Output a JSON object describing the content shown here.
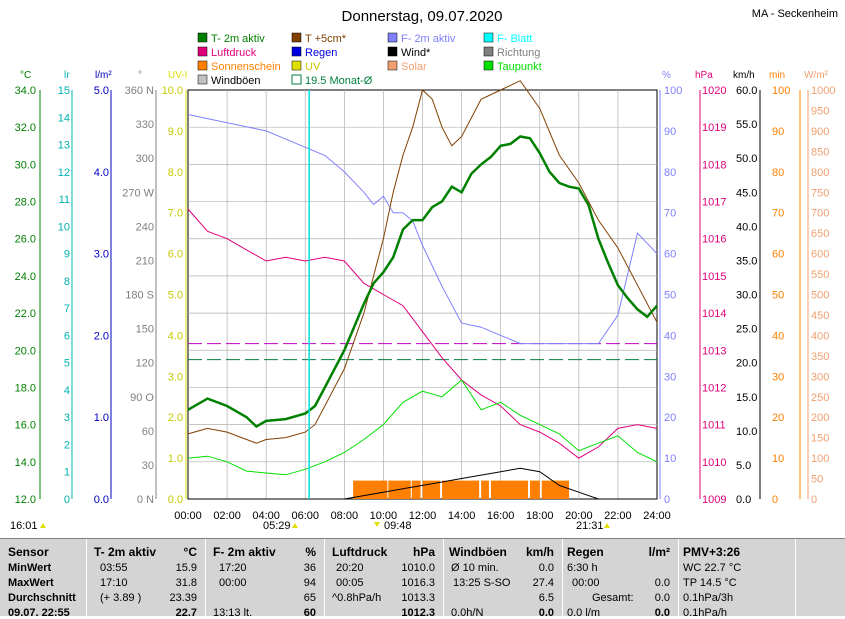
{
  "title": "Donnerstag, 09.07.2020",
  "station": "MA - Seckenheim",
  "legend": [
    {
      "label": "T- 2m aktiv",
      "color": "#008000",
      "kind": "box"
    },
    {
      "label": "T +5cm*",
      "color": "#804000",
      "kind": "box"
    },
    {
      "label": "F- 2m aktiv",
      "color": "#8080ff",
      "kind": "box"
    },
    {
      "label": "F- Blatt",
      "color": "#00ffff",
      "kind": "box"
    },
    {
      "label": "Luftdruck",
      "color": "#e0007a",
      "kind": "box"
    },
    {
      "label": "Regen",
      "color": "#0000e0",
      "kind": "box"
    },
    {
      "label": "Wind*",
      "color": "#000000",
      "kind": "box"
    },
    {
      "label": "Richtung",
      "color": "#808080",
      "kind": "box"
    },
    {
      "label": "Sonnenschein",
      "color": "#ff8000",
      "kind": "box"
    },
    {
      "label": "UV",
      "color": "#e0e000",
      "kind": "box"
    },
    {
      "label": "Solar",
      "color": "#f0a070",
      "kind": "box"
    },
    {
      "label": "Taupunkt",
      "color": "#00e000",
      "kind": "box"
    },
    {
      "label": "Windböen",
      "color": "#c0c0c0",
      "kind": "box"
    },
    {
      "label": "19.5 Monat-Ø",
      "color": "#008040",
      "kind": "outline"
    }
  ],
  "axes": [
    {
      "unit": "°C",
      "color": "#008000",
      "ticks": [
        "34.0",
        "32.0",
        "30.0",
        "28.0",
        "26.0",
        "24.0",
        "22.0",
        "20.0",
        "18.0",
        "16.0",
        "14.0",
        "12.0"
      ]
    },
    {
      "unit": "lr",
      "color": "#00b0b0",
      "ticks": [
        "15",
        "14",
        "13",
        "12",
        "11",
        "10",
        "9",
        "8",
        "7",
        "6",
        "5",
        "4",
        "3",
        "2",
        "1",
        "0"
      ]
    },
    {
      "unit": "l/m²",
      "color": "#0000c0",
      "ticks": [
        "5.0",
        "4.0",
        "3.0",
        "2.0",
        "1.0",
        "0.0"
      ]
    },
    {
      "unit": "°",
      "color": "#808080",
      "ticks": [
        "360 N",
        "330",
        "300",
        "270 W",
        "240",
        "210",
        "180 S",
        "150",
        "120",
        "90 O",
        "60",
        "30",
        "0 N"
      ]
    },
    {
      "unit": "UV-I",
      "color": "#e0e000",
      "ticks": [
        "10.0",
        "9.0",
        "8.0",
        "7.0",
        "6.0",
        "5.0",
        "4.0",
        "3.0",
        "2.0",
        "1.0",
        "0.0"
      ]
    },
    {
      "unit": "%",
      "color": "#8080ff",
      "ticks": [
        "100",
        "90",
        "80",
        "70",
        "60",
        "50",
        "40",
        "30",
        "20",
        "10",
        "0"
      ]
    },
    {
      "unit": "hPa",
      "color": "#e0007a",
      "ticks": [
        "1020",
        "1019",
        "1018",
        "1017",
        "1016",
        "1015",
        "1014",
        "1013",
        "1012",
        "1011",
        "1010",
        "1009"
      ]
    },
    {
      "unit": "km/h",
      "color": "#000000",
      "ticks": [
        "60.0",
        "55.0",
        "50.0",
        "45.0",
        "40.0",
        "35.0",
        "30.0",
        "25.0",
        "20.0",
        "15.0",
        "10.0",
        "5.0",
        "0.0"
      ]
    },
    {
      "unit": "min",
      "color": "#ff8000",
      "ticks": [
        "100",
        "90",
        "80",
        "70",
        "60",
        "50",
        "40",
        "30",
        "20",
        "10",
        "0"
      ]
    },
    {
      "unit": "W/m²",
      "color": "#f0a070",
      "ticks": [
        "1000",
        "950",
        "900",
        "850",
        "800",
        "750",
        "700",
        "650",
        "600",
        "550",
        "500",
        "450",
        "400",
        "350",
        "300",
        "250",
        "200",
        "150",
        "100",
        "50",
        "0"
      ]
    }
  ],
  "x_ticks": [
    "00:00",
    "02:00",
    "04:00",
    "06:00",
    "08:00",
    "10:00",
    "12:00",
    "14:00",
    "16:00",
    "18:00",
    "20:00",
    "22:00",
    "24:00"
  ],
  "time_marks": {
    "left": "16:01",
    "sunrise": "05:29",
    "uvmax": "09:48",
    "sunset": "21:31"
  },
  "chart_data": {
    "type": "line",
    "title": "Donnerstag, 09.07.2020",
    "x_unit": "hours",
    "temp_2m": {
      "x": [
        0,
        1,
        2,
        3,
        3.5,
        4,
        5,
        6,
        6.5,
        7,
        8,
        9,
        9.5,
        10,
        10.5,
        11,
        11.5,
        12,
        12.5,
        13,
        13.5,
        14,
        14.5,
        15,
        15.5,
        16,
        16.5,
        17,
        17.5,
        18,
        18.5,
        19,
        19.5,
        20,
        20.5,
        21,
        21.5,
        22,
        22.5,
        23,
        23.5,
        24
      ],
      "y": [
        16.8,
        17.4,
        17.0,
        16.4,
        15.9,
        16.2,
        16.3,
        16.6,
        17.0,
        18.0,
        20.0,
        22.5,
        23.6,
        24.2,
        25.0,
        26.5,
        27.0,
        27.0,
        27.7,
        28.0,
        28.8,
        28.5,
        29.5,
        30.0,
        30.4,
        31.0,
        31.1,
        31.5,
        31.4,
        30.6,
        29.6,
        29.0,
        28.8,
        28.7,
        27.8,
        26.0,
        24.7,
        23.5,
        22.8,
        22.2,
        21.8,
        22.4
      ]
    },
    "temp_5cm": {
      "x": [
        0,
        1,
        2,
        3,
        3.5,
        4,
        5,
        6,
        6.5,
        7,
        8,
        9,
        9.5,
        10,
        10.5,
        11,
        11.5,
        12,
        12.5,
        13,
        13.5,
        14,
        15,
        16,
        17,
        18,
        19,
        20,
        21,
        22,
        23,
        24
      ],
      "y": [
        15.5,
        15.8,
        15.6,
        15.2,
        15.0,
        15.2,
        15.3,
        15.6,
        16.0,
        17.0,
        19.0,
        22.0,
        24.0,
        26.0,
        28.5,
        30.5,
        32.0,
        34.0,
        33.5,
        32.0,
        31.0,
        31.5,
        33.5,
        34.0,
        34.5,
        33.0,
        30.5,
        29.0,
        27.0,
        25.5,
        23.5,
        21.5
      ]
    },
    "humidity_2m": {
      "x": [
        0,
        1,
        2,
        3,
        4,
        5,
        6,
        7,
        8,
        9,
        9.5,
        10,
        10.5,
        11,
        11.5,
        12,
        13,
        14,
        15,
        16,
        17,
        18,
        19,
        20,
        21,
        22,
        23,
        24
      ],
      "y": [
        94,
        93,
        92,
        91,
        90,
        88,
        86,
        84,
        80,
        75,
        72,
        74,
        70,
        70,
        68,
        62,
        52,
        43,
        42,
        40,
        38,
        38,
        38,
        38,
        38,
        45,
        65,
        60
      ]
    },
    "pressure": {
      "x": [
        0,
        1,
        2,
        3,
        4,
        5,
        6,
        7,
        8,
        9,
        10,
        11,
        12,
        13,
        14,
        15,
        16,
        17,
        18,
        19,
        20,
        21,
        22,
        23,
        24
      ],
      "y": [
        1016.8,
        1016.2,
        1016.0,
        1015.7,
        1015.4,
        1015.5,
        1015.4,
        1015.5,
        1015.4,
        1014.8,
        1014.5,
        1014.2,
        1013.5,
        1012.8,
        1012.2,
        1011.8,
        1011.5,
        1011.0,
        1010.8,
        1010.5,
        1010.1,
        1010.4,
        1010.9,
        1011.0,
        1010.9
      ]
    },
    "dewpoint": {
      "x": [
        0,
        1,
        2,
        3,
        4,
        5,
        6,
        7,
        8,
        9,
        10,
        11,
        12,
        13,
        14,
        15,
        16,
        17,
        18,
        19,
        20,
        21,
        22,
        23,
        24
      ],
      "y": [
        14.2,
        14.3,
        14.0,
        13.5,
        13.4,
        13.3,
        13.6,
        14.0,
        14.5,
        15.2,
        16.0,
        17.2,
        17.8,
        17.5,
        18.4,
        16.8,
        17.2,
        16.5,
        16.0,
        15.5,
        14.6,
        15.0,
        15.4,
        14.5,
        14.0
      ]
    },
    "wind": {
      "x": [
        0,
        6,
        8,
        9,
        10,
        11,
        12,
        13,
        14,
        15,
        16,
        17,
        18,
        19,
        20,
        21,
        24
      ],
      "y": [
        0,
        0,
        0,
        0.5,
        1,
        1.5,
        2,
        2.5,
        3,
        3.5,
        4,
        4.5,
        4,
        2,
        1,
        0,
        0
      ]
    },
    "sunshine_min": {
      "x": [
        9,
        10,
        11,
        11.5,
        12,
        13,
        14,
        15,
        16,
        17,
        18,
        19,
        20
      ],
      "y": [
        4.5,
        4.5,
        4.5,
        4.5,
        4.5,
        4.5,
        4.5,
        4.5,
        4.5,
        4.5,
        4.5,
        4.5,
        4.5
      ]
    },
    "monthly_avg_temp": 19.5,
    "monthly_avg_humidity_line": 38
  },
  "stats": {
    "sensor": {
      "header": "Sensor",
      "rows": [
        "MinWert",
        "MaxWert",
        "Durchschnitt",
        "09.07. 22:55"
      ]
    },
    "t2m": {
      "header": "T- 2m aktiv",
      "unit": "°C",
      "rows": [
        [
          "03:55",
          "15.9"
        ],
        [
          "17:10",
          "31.8"
        ],
        [
          "(+ 3.89 )",
          "23.39"
        ],
        [
          "",
          "22.7"
        ]
      ]
    },
    "f2m": {
      "header": "F- 2m aktiv",
      "unit": "%",
      "rows": [
        [
          "17:20",
          "36"
        ],
        [
          "00:00",
          "94"
        ],
        [
          "",
          "65"
        ],
        [
          "13:13 lt. ",
          "60"
        ]
      ]
    },
    "pressure": {
      "header": "Luftdruck",
      "unit": "hPa",
      "rows": [
        [
          "20:20",
          "1010.0"
        ],
        [
          "00:05",
          "1016.3"
        ],
        [
          "^0.8hPa/h",
          "1013.3"
        ],
        [
          "",
          "1012.3"
        ]
      ]
    },
    "gusts": {
      "header": "Windböen",
      "unit": "km/h",
      "rows": [
        [
          "Ø 10 min.",
          "0.0"
        ],
        [
          "13:25  S-SO",
          "27.4"
        ],
        [
          "",
          "6.5"
        ],
        [
          "0.0h/N",
          "0.0"
        ]
      ]
    },
    "rain": {
      "header": "Regen",
      "unit": "l/m²",
      "rows": [
        [
          "6:30 h",
          ""
        ],
        [
          "00:00",
          "0.0"
        ],
        [
          "Gesamt:",
          "0.0"
        ],
        [
          "0.0 l/m",
          "0.0"
        ]
      ]
    },
    "pmv": {
      "header": "PMV+3:26",
      "rows": [
        "WC 22.7 °C",
        "TP 14.5 °C",
        "0.1hPa/3h",
        "0.1hPa/h"
      ]
    }
  }
}
